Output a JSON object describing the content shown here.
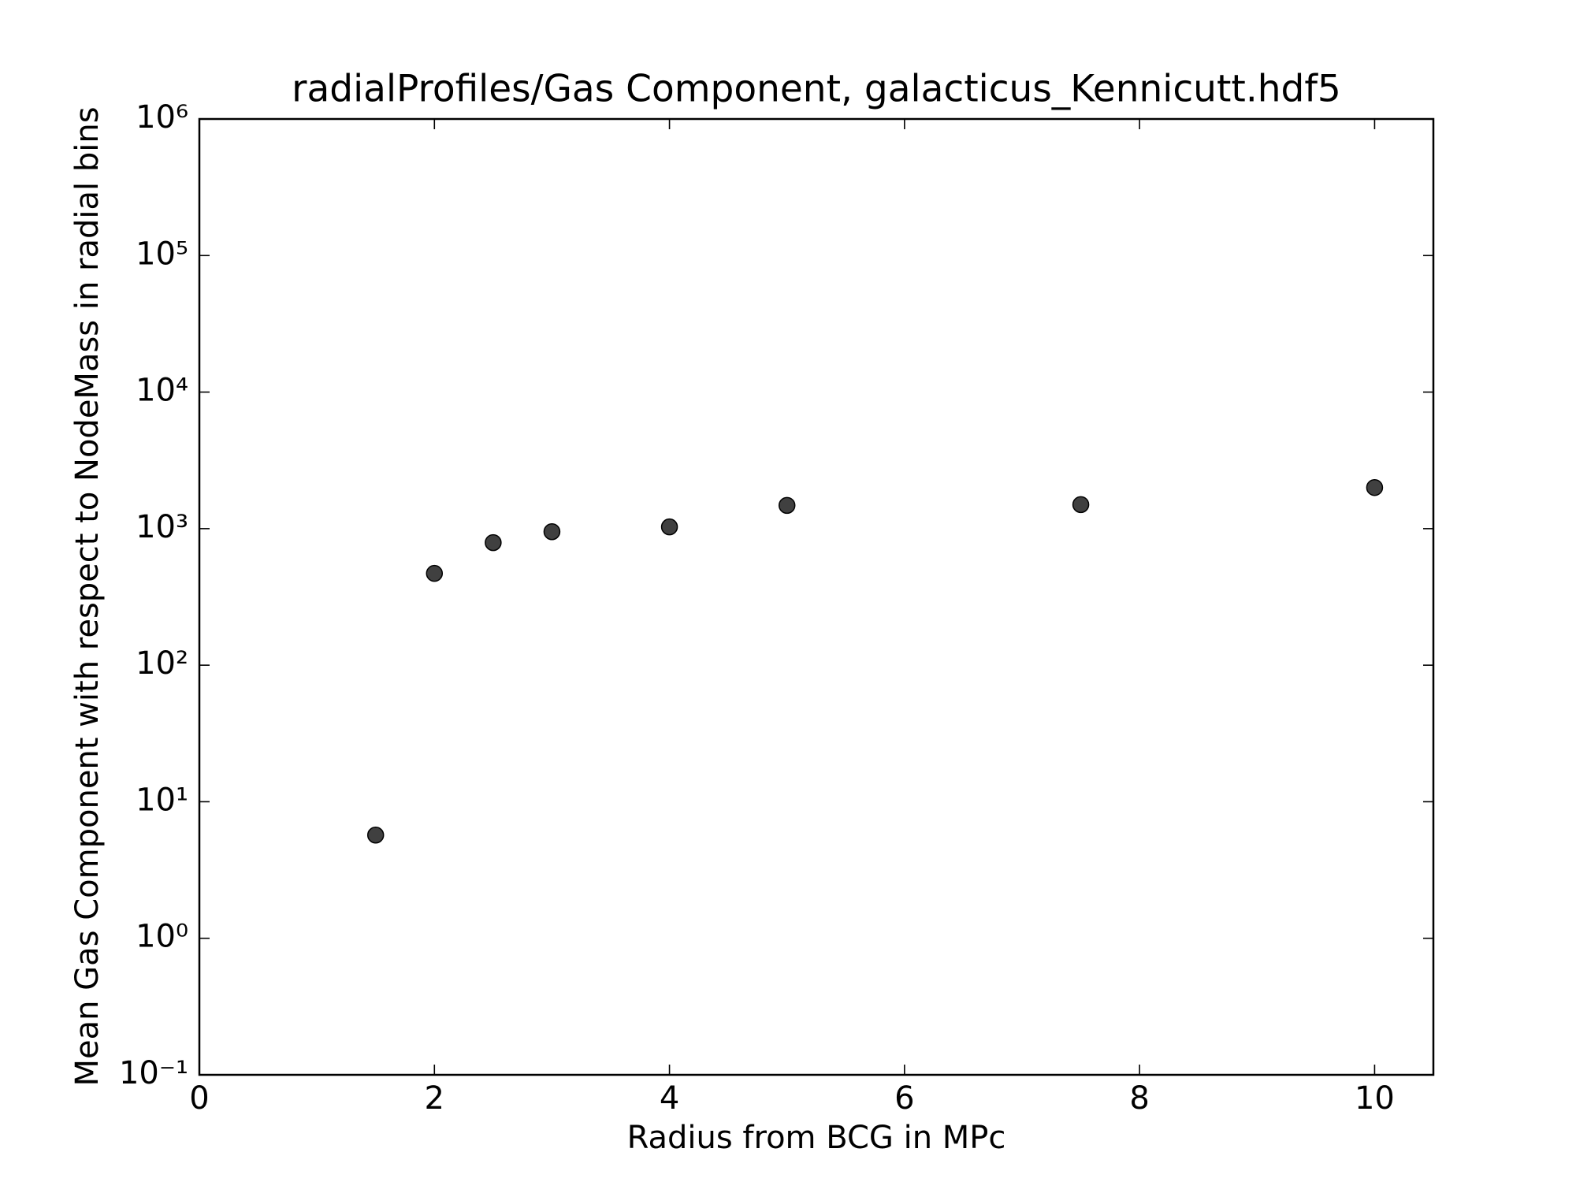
{
  "chart_data": {
    "type": "scatter",
    "title": "radialProfiles/Gas Component, galacticus_Kennicutt.hdf5",
    "xlabel": "Radius from BCG in MPc",
    "ylabel": "Mean Gas Component with respect to NodeMass in radial bins",
    "x": [
      1.5,
      2,
      2.5,
      3,
      4,
      5,
      7.5,
      10
    ],
    "series": [
      {
        "color": "#404040",
        "values": [
          5.7,
          470,
          790,
          950,
          1030,
          1480,
          1500,
          2000
        ]
      }
    ],
    "xlim": [
      0,
      10.5
    ],
    "xticks": [
      0,
      2,
      4,
      6,
      8,
      10
    ],
    "ylim": [
      0.1,
      1000000
    ],
    "ylog": true,
    "yticks": [
      {
        "value": 0.1,
        "label": "10⁻¹"
      },
      {
        "value": 1,
        "label": "10⁰"
      },
      {
        "value": 10,
        "label": "10¹"
      },
      {
        "value": 100,
        "label": "10²"
      },
      {
        "value": 1000,
        "label": "10³"
      },
      {
        "value": 10000,
        "label": "10⁴"
      },
      {
        "value": 100000,
        "label": "10⁵"
      },
      {
        "value": 1000000,
        "label": "10⁶"
      }
    ],
    "grid": false
  }
}
